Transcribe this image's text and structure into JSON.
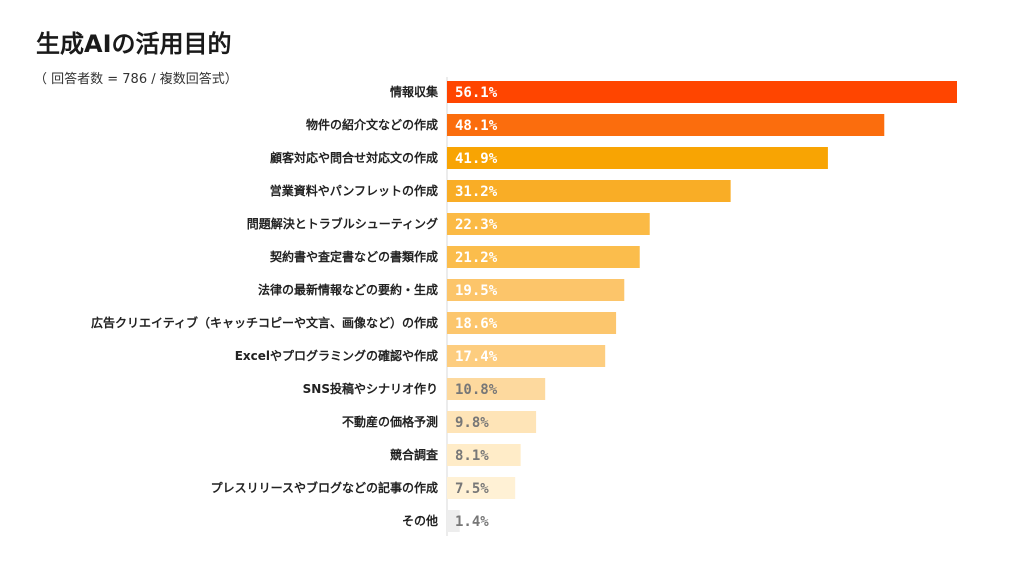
{
  "chart_data": {
    "type": "bar",
    "orientation": "horizontal",
    "title": "生成AIの活用目的",
    "subtitle": "（ 回答者数 = 786 / 複数回答式）",
    "categories": [
      "情報収集",
      "物件の紹介文などの作成",
      "顧客対応や問合せ対応文の作成",
      "営業資料やパンフレットの作成",
      "問題解決とトラブルシューティング",
      "契約書や査定書などの書類作成",
      "法律の最新情報などの要約・生成",
      "広告クリエイティブ（キャッチコピーや文言、画像など）の作成",
      "Excelやプログラミングの確認や作成",
      "SNS投稿やシナリオ作り",
      "不動産の価格予測",
      "競合調査",
      "プレスリリースやブログなどの記事の作成",
      "その他"
    ],
    "values": [
      56.1,
      48.1,
      41.9,
      31.2,
      22.3,
      21.2,
      19.5,
      18.6,
      17.4,
      10.8,
      9.8,
      8.1,
      7.5,
      1.4
    ],
    "value_labels": [
      "56.1%",
      "48.1%",
      "41.9%",
      "31.2%",
      "22.3%",
      "21.2%",
      "19.5%",
      "18.6%",
      "17.4%",
      "10.8%",
      "9.8%",
      "8.1%",
      "7.5%",
      "1.4%"
    ],
    "colors": [
      "#ff4500",
      "#fb6d0d",
      "#f8a403",
      "#f9ad26",
      "#fbba45",
      "#fbbd4c",
      "#fcc56a",
      "#fcc66d",
      "#fdcd7f",
      "#fdd99e",
      "#fee4b7",
      "#ffecc8",
      "#fff1d5",
      "#ededed"
    ],
    "label_colors": [
      "#ffffff",
      "#ffffff",
      "#ffffff",
      "#ffffff",
      "#ffffff",
      "#ffffff",
      "#ffffff",
      "#ffffff",
      "#ffffff",
      "#777777",
      "#777777",
      "#777777",
      "#777777",
      "#777777"
    ],
    "xlim": [
      0,
      60
    ],
    "grid": false,
    "legend": "none"
  }
}
